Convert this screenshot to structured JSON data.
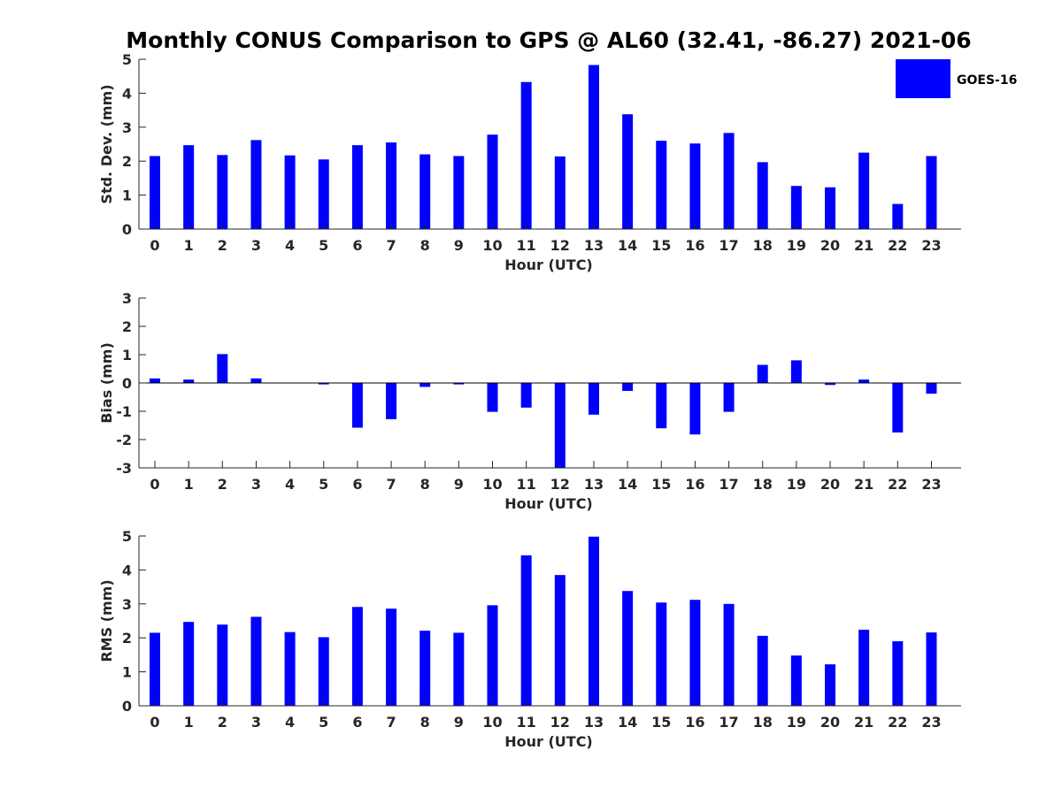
{
  "figure": {
    "title": "Monthly CONUS Comparison to GPS @ AL60 (32.41, -86.27) 2021-06"
  },
  "legend": {
    "label": "GOES-16",
    "color": "#0000ff",
    "placement": "top-right"
  },
  "chart_data": [
    {
      "type": "bar",
      "categories": [
        "0",
        "1",
        "2",
        "3",
        "4",
        "5",
        "6",
        "7",
        "8",
        "9",
        "10",
        "11",
        "12",
        "13",
        "14",
        "15",
        "16",
        "17",
        "18",
        "19",
        "20",
        "21",
        "22",
        "23"
      ],
      "series": [
        {
          "name": "GOES-16",
          "color": "#0000ff",
          "values": [
            2.15,
            2.47,
            2.18,
            2.62,
            2.17,
            2.05,
            2.47,
            2.55,
            2.2,
            2.15,
            2.78,
            4.33,
            2.14,
            4.83,
            3.38,
            2.6,
            2.52,
            2.83,
            1.97,
            1.27,
            1.23,
            2.25,
            0.74,
            2.15
          ]
        }
      ],
      "xlabel": "Hour (UTC)",
      "ylabel": "Std. Dev. (mm)",
      "ylim": [
        0,
        5
      ],
      "yticks": [
        0,
        1,
        2,
        3,
        4,
        5
      ],
      "grid": false
    },
    {
      "type": "bar",
      "categories": [
        "0",
        "1",
        "2",
        "3",
        "4",
        "5",
        "6",
        "7",
        "8",
        "9",
        "10",
        "11",
        "12",
        "13",
        "14",
        "15",
        "16",
        "17",
        "18",
        "19",
        "20",
        "21",
        "22",
        "23"
      ],
      "series": [
        {
          "name": "GOES-16",
          "color": "#0000ff",
          "values": [
            0.16,
            0.12,
            1.02,
            0.16,
            0.0,
            -0.05,
            -1.58,
            -1.28,
            -0.14,
            -0.05,
            -1.02,
            -0.87,
            -3.0,
            -1.12,
            -0.28,
            -1.6,
            -1.82,
            -1.02,
            0.64,
            0.8,
            -0.07,
            0.12,
            -1.75,
            -0.38
          ]
        }
      ],
      "xlabel": "Hour (UTC)",
      "ylabel": "Bias (mm)",
      "ylim": [
        -3,
        3
      ],
      "yticks": [
        -3,
        -2,
        -1,
        0,
        1,
        2,
        3
      ],
      "grid": false
    },
    {
      "type": "bar",
      "categories": [
        "0",
        "1",
        "2",
        "3",
        "4",
        "5",
        "6",
        "7",
        "8",
        "9",
        "10",
        "11",
        "12",
        "13",
        "14",
        "15",
        "16",
        "17",
        "18",
        "19",
        "20",
        "21",
        "22",
        "23"
      ],
      "series": [
        {
          "name": "GOES-16",
          "color": "#0000ff",
          "values": [
            2.15,
            2.47,
            2.39,
            2.62,
            2.17,
            2.02,
            2.91,
            2.86,
            2.21,
            2.15,
            2.96,
            4.43,
            3.85,
            4.98,
            3.38,
            3.04,
            3.12,
            3.0,
            2.06,
            1.48,
            1.22,
            2.24,
            1.9,
            2.16
          ]
        }
      ],
      "xlabel": "Hour (UTC)",
      "ylabel": "RMS (mm)",
      "ylim": [
        0,
        5
      ],
      "yticks": [
        0,
        1,
        2,
        3,
        4,
        5
      ],
      "grid": false
    }
  ]
}
